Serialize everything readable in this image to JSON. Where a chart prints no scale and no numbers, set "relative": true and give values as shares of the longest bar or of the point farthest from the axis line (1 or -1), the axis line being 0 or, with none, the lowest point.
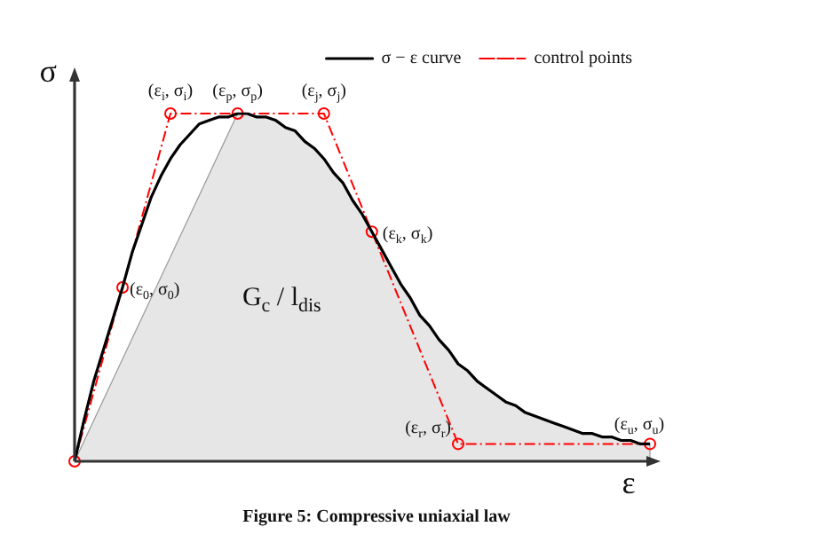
{
  "chart_data": {
    "type": "line",
    "relative": true,
    "xlabel": "ε",
    "ylabel": "σ",
    "legend": "top right",
    "categories": [
      null,
      null,
      null,
      null,
      null,
      null,
      null,
      null,
      null,
      null,
      null,
      null,
      null,
      null,
      null,
      null,
      null,
      null,
      null,
      null,
      null,
      null,
      null,
      null,
      null,
      null,
      null,
      null,
      null,
      null,
      null,
      null,
      null,
      null,
      null,
      null,
      null,
      null,
      null,
      null,
      null,
      null,
      null,
      null,
      null,
      null,
      null,
      null,
      null,
      null,
      null,
      null,
      null,
      null,
      null,
      null,
      null,
      null,
      null,
      null,
      null
    ],
    "series": [
      {
        "name": "σ − ε curve",
        "color": "#000000",
        "marker": "none",
        "line_style": "solid",
        "values": [
          0,
          0.12,
          0.23,
          0.32,
          0.41,
          0.5,
          0.6,
          0.68,
          0.76,
          0.82,
          0.87,
          0.91,
          0.94,
          0.97,
          0.98,
          0.99,
          0.99,
          1,
          1,
          0.99,
          0.99,
          0.98,
          0.96,
          0.95,
          0.92,
          0.9,
          0.87,
          0.83,
          0.8,
          0.75,
          0.71,
          0.66,
          0.61,
          0.56,
          0.51,
          0.47,
          0.42,
          0.39,
          0.35,
          0.32,
          0.28,
          0.26,
          0.23,
          0.21,
          0.19,
          0.17,
          0.16,
          0.14,
          0.13,
          0.12,
          0.11,
          0.1,
          0.09,
          0.08,
          0.08,
          0.07,
          0.07,
          0.06,
          0.06,
          0.05,
          0.05
        ]
      },
      {
        "name": "control points",
        "color": "#ff0000",
        "marker": "circle",
        "line_style": "dashed",
        "values": [
          0,
          null,
          null,
          null,
          null,
          0.5,
          null,
          null,
          null,
          null,
          1,
          null,
          null,
          null,
          null,
          null,
          null,
          1,
          null,
          null,
          null,
          null,
          null,
          null,
          null,
          null,
          1,
          null,
          null,
          null,
          null,
          0.66,
          null,
          null,
          null,
          null,
          null,
          null,
          null,
          null,
          0.05,
          null,
          null,
          null,
          null,
          null,
          null,
          null,
          null,
          null,
          null,
          null,
          null,
          null,
          null,
          null,
          null,
          null,
          null,
          null,
          0.05
        ]
      }
    ],
    "annotations": [
      "(ε$_{0}$, σ$_{0}$)",
      "(ε$_{i}$, σ$_{i}$)",
      "(ε$_{p}$, σ$_{p}$)",
      "(ε$_{j}$, σ$_{j}$)",
      "(ε$_{k}$, σ$_{k}$)",
      "(ε$_{r}$, σ$_{r}$)",
      "(ε$_{u}$, σ$_{u}$)",
      "G$_{c}$ / l$_{dis}$",
      "Figure 5: Compressive uniaxial law"
    ]
  }
}
